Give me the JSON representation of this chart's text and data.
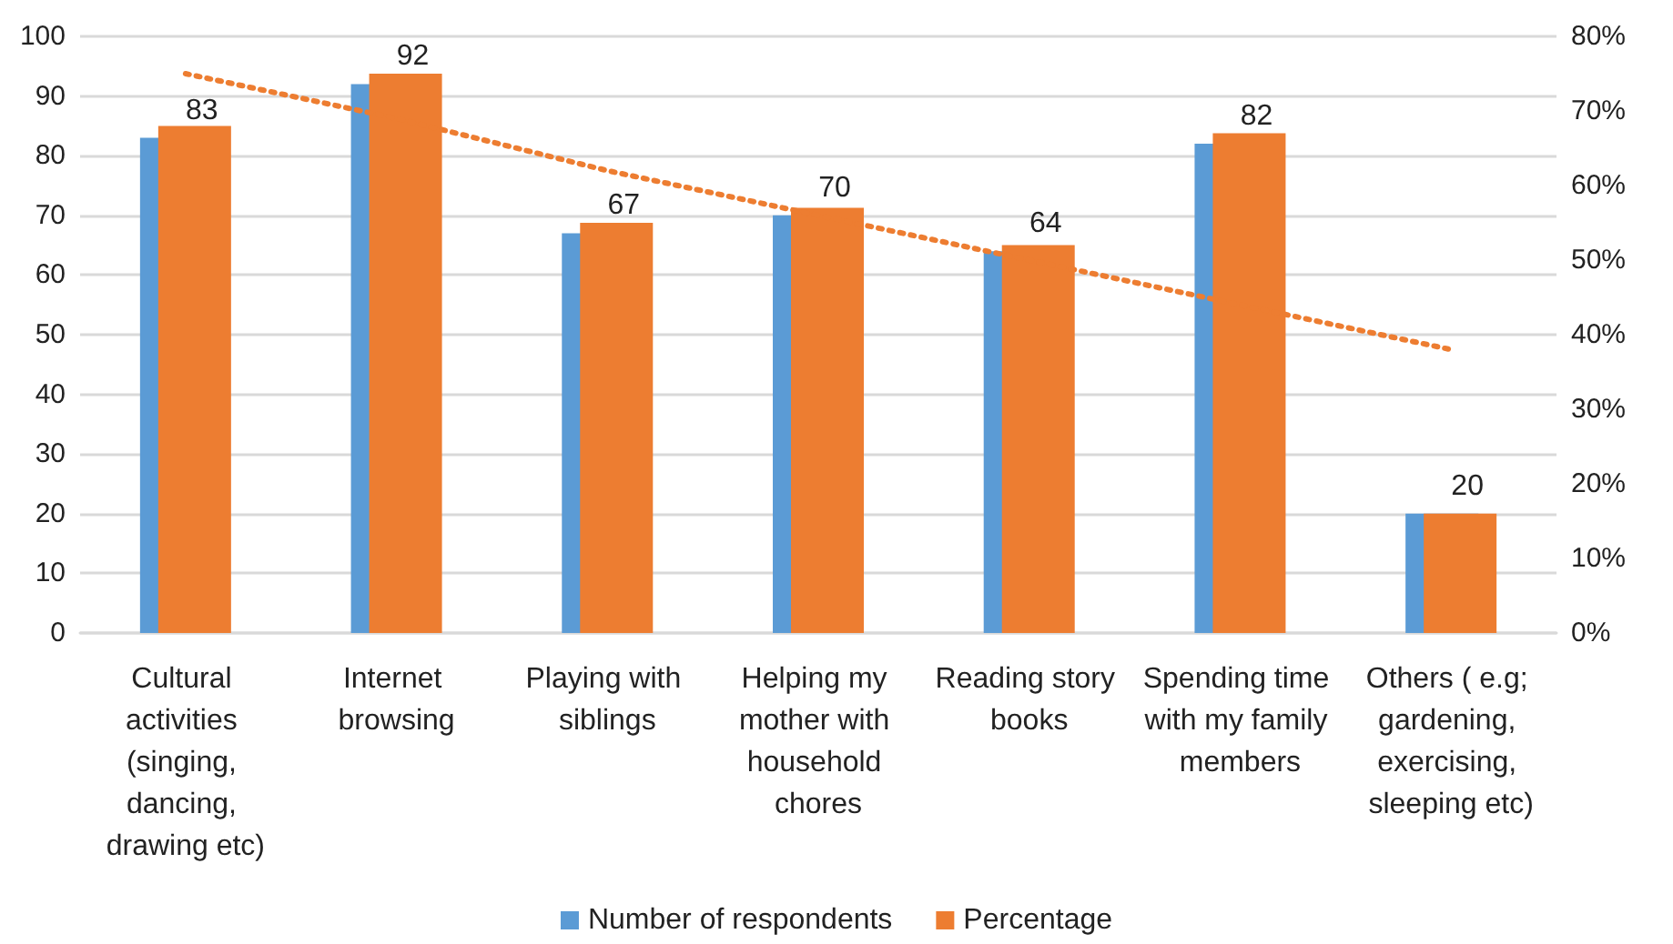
{
  "chart_data": {
    "type": "bar",
    "categories": [
      "Cultural activities (singing, dancing, drawing etc)",
      "Internet browsing",
      "Playing with siblings",
      "Helping my mother with household chores",
      "Reading story books",
      "Spending time with my family members",
      "Others ( e.g; gardening, exercising, sleeping etc)"
    ],
    "series": [
      {
        "name": "Number of respondents",
        "color": "#5b9bd5",
        "values": [
          83,
          92,
          67,
          70,
          64,
          82,
          20
        ],
        "value_labels": [
          "83",
          "92",
          "67",
          "70",
          "64",
          "82",
          "20"
        ]
      },
      {
        "name": "Percentage",
        "color": "#ed7d31",
        "axis": "y2",
        "values": [
          68,
          75,
          55,
          57,
          52,
          67,
          16
        ]
      },
      {
        "type": "line",
        "color": "#ed7d31",
        "axis": "y2",
        "line_style": "dotted",
        "marker": "none",
        "values": [
          75,
          69,
          62,
          56,
          50,
          44,
          38
        ]
      }
    ],
    "ylim": [
      0,
      100
    ],
    "yticks": [
      0,
      10,
      20,
      30,
      40,
      50,
      60,
      70,
      80,
      90,
      100
    ],
    "y2lim": [
      0,
      80
    ],
    "y2ticks": [
      {
        "value": 0,
        "label": "0%"
      },
      {
        "value": 10,
        "label": "10%"
      },
      {
        "value": 20,
        "label": "20%"
      },
      {
        "value": 30,
        "label": "30%"
      },
      {
        "value": 40,
        "label": "40%"
      },
      {
        "value": 50,
        "label": "50%"
      },
      {
        "value": 60,
        "label": "60%"
      },
      {
        "value": 70,
        "label": "70%"
      },
      {
        "value": 80,
        "label": "80%"
      }
    ],
    "grid": "y",
    "legend": "bottom"
  }
}
